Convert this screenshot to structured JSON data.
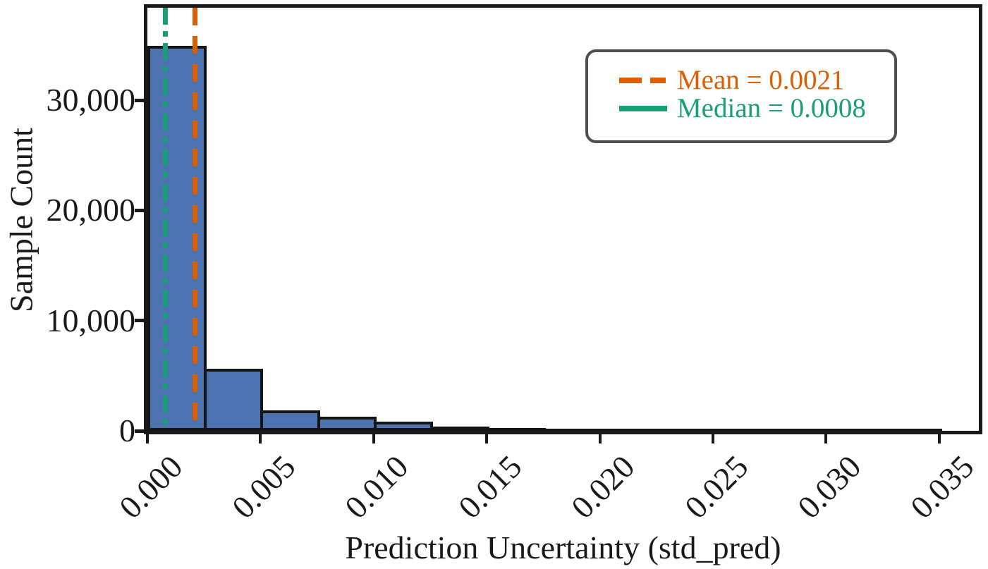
{
  "figure": {
    "background": "#ffffff"
  },
  "chart_data": {
    "type": "bar",
    "subtype": "histogram",
    "title": "",
    "xlabel": "Prediction Uncertainty (std_pred)",
    "ylabel": "Sample Count",
    "grid": false,
    "bar_color": "#4C72B0",
    "bar_edge_color": "#151515",
    "xlim": [
      0.0,
      0.03675
    ],
    "ylim": [
      0,
      38400
    ],
    "bin_edges": [
      0.0,
      0.0025,
      0.005,
      0.0075,
      0.01,
      0.0125,
      0.015,
      0.0175,
      0.02,
      0.0225,
      0.025,
      0.0275,
      0.03,
      0.0325,
      0.035
    ],
    "counts": [
      34700,
      5400,
      1600,
      1050,
      600,
      250,
      120,
      60,
      30,
      18,
      12,
      8,
      5,
      3
    ],
    "xticks": {
      "values": [
        0.0,
        0.005,
        0.01,
        0.015,
        0.02,
        0.025,
        0.03,
        0.035
      ],
      "labels": [
        "0.000",
        "0.005",
        "0.010",
        "0.015",
        "0.020",
        "0.025",
        "0.030",
        "0.035"
      ],
      "rotation_deg": 45
    },
    "yticks": {
      "values": [
        0,
        10000,
        20000,
        30000
      ],
      "labels": [
        "0",
        "10,000",
        "20,000",
        "30,000"
      ]
    },
    "reference_lines": [
      {
        "name": "mean",
        "value": 0.0021,
        "color": "#D95F02",
        "style": "dashed"
      },
      {
        "name": "median",
        "value": 0.0008,
        "color": "#1B9E77",
        "style": "dashdot"
      }
    ],
    "legend": {
      "position": "upper-right",
      "border_color": "#4f4f4f",
      "entries": [
        {
          "label": "Mean = 0.0021",
          "color": "#D95F02",
          "handle": "dashed"
        },
        {
          "label": "Median = 0.0008",
          "color": "#1B9E77",
          "handle": "solid"
        }
      ]
    }
  }
}
